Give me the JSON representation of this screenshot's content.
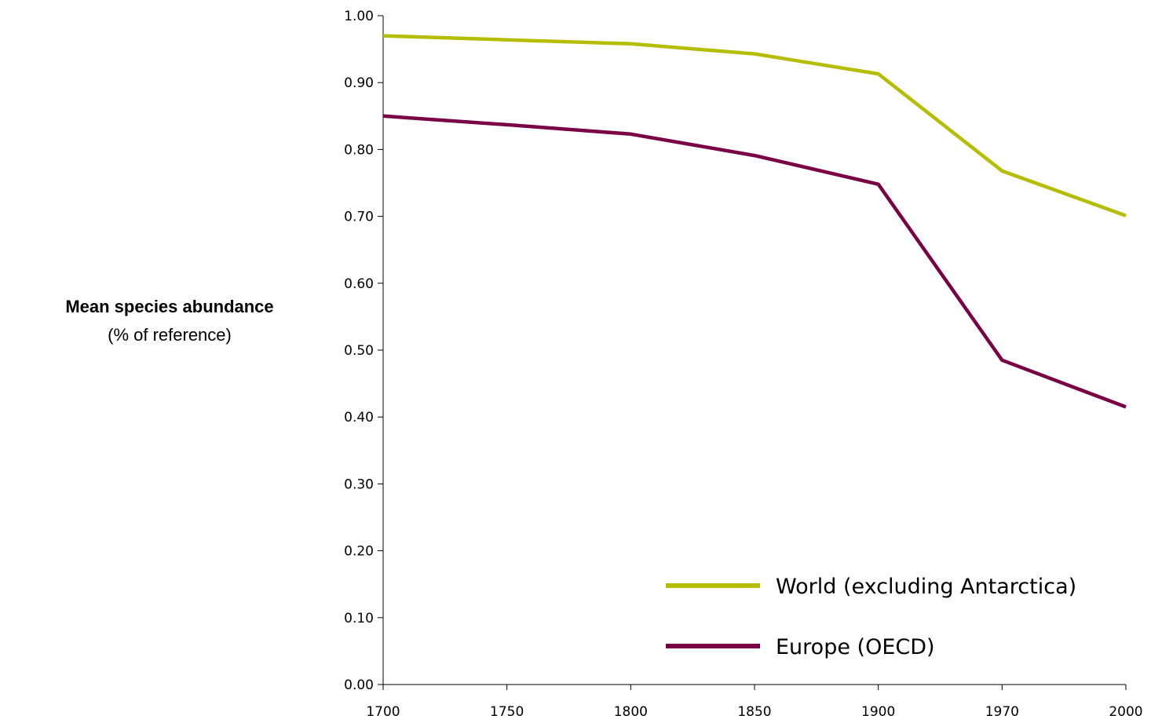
{
  "chart_data": {
    "type": "line",
    "x": [
      "1700",
      "1750",
      "1800",
      "1850",
      "1900",
      "1970",
      "2000"
    ],
    "series": [
      {
        "name": "World (excluding Antarctica)",
        "color": "#b5bd00",
        "values": [
          0.97,
          0.964,
          0.958,
          0.943,
          0.913,
          0.768,
          0.701
        ]
      },
      {
        "name": "Europe (OECD)",
        "color": "#7a0045",
        "values": [
          0.85,
          0.837,
          0.823,
          0.791,
          0.748,
          0.485,
          0.415
        ]
      }
    ],
    "title": "",
    "ylabel_main": "Mean species abundance",
    "ylabel_sub": "(% of reference)",
    "ylim": [
      0,
      1
    ],
    "yticks": [
      "0.00",
      "0.10",
      "0.20",
      "0.30",
      "0.40",
      "0.50",
      "0.60",
      "0.70",
      "0.80",
      "0.90",
      "1.00"
    ],
    "grid": false,
    "legend_position": "bottom-right"
  }
}
